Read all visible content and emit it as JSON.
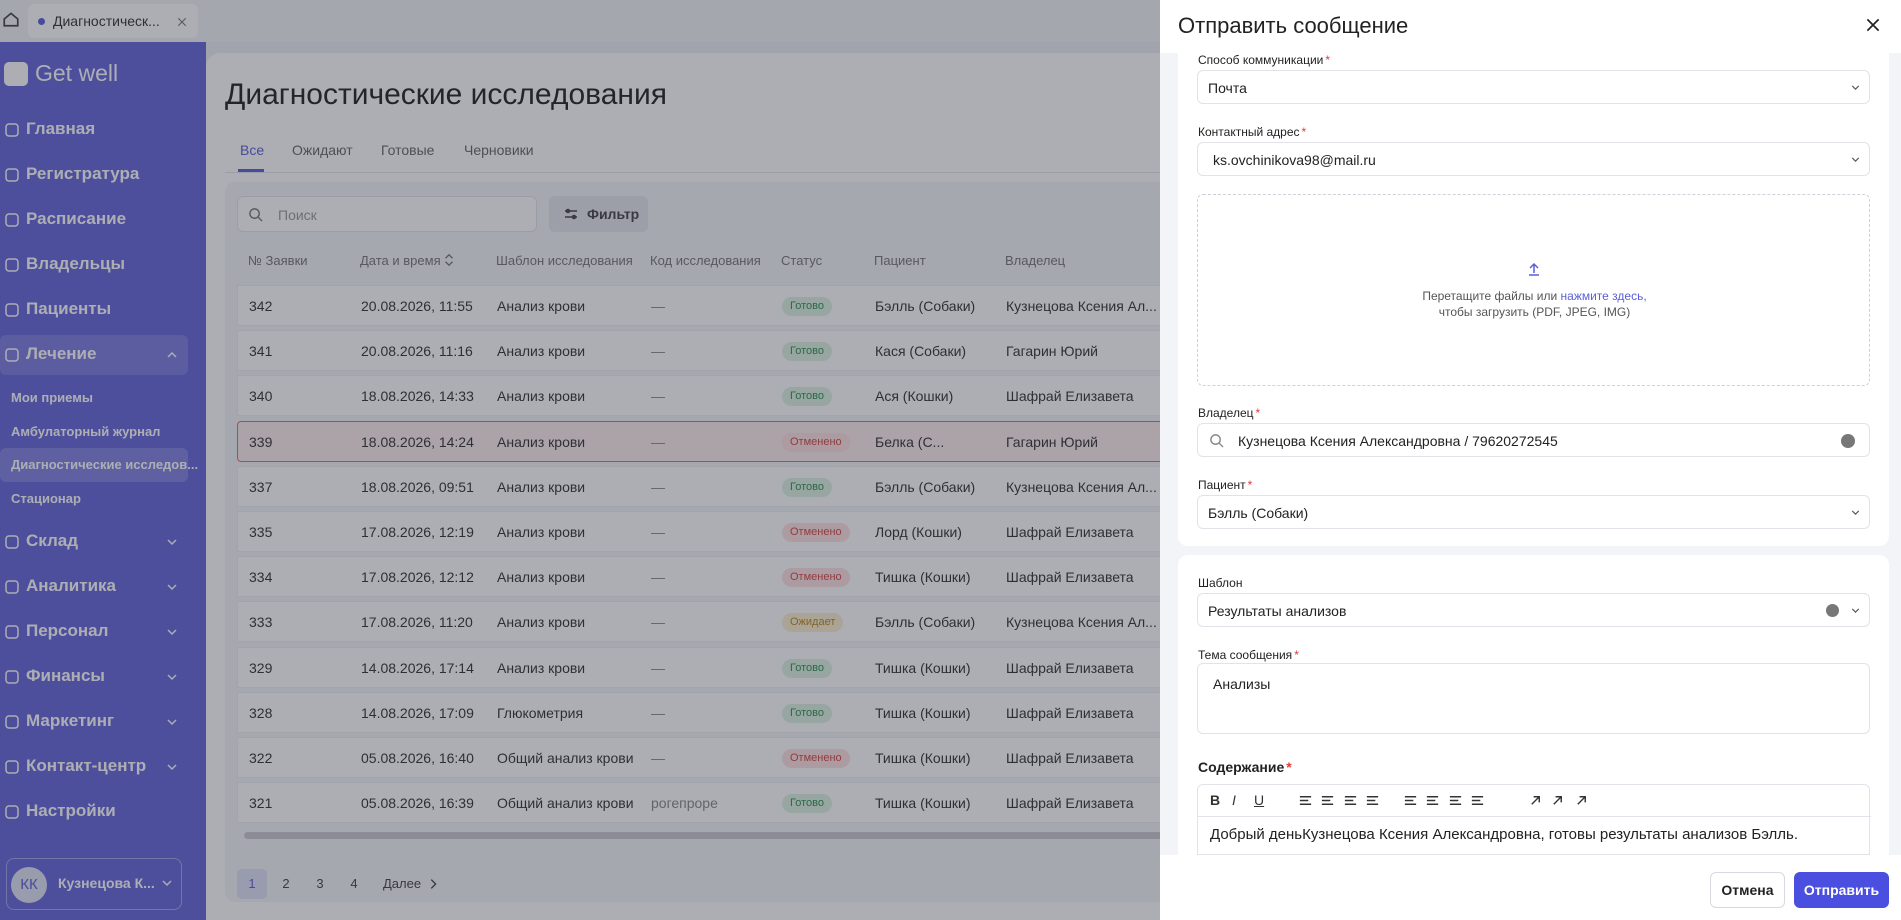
{
  "browser_tab": {
    "title": "Диагностическ..."
  },
  "sidebar": {
    "logo": "Get well",
    "nav": [
      {
        "label": "Главная"
      },
      {
        "label": "Регистратура"
      },
      {
        "label": "Расписание"
      },
      {
        "label": "Владельцы"
      },
      {
        "label": "Пациенты"
      },
      {
        "label": "Лечение",
        "expandable": true,
        "expanded": true,
        "children": [
          {
            "label": "Мои приемы"
          },
          {
            "label": "Амбулаторный журнал"
          },
          {
            "label": "Диагностические исследов...",
            "active": true
          },
          {
            "label": "Стационар"
          }
        ]
      },
      {
        "label": "Склад",
        "expandable": true
      },
      {
        "label": "Аналитика",
        "expandable": true
      },
      {
        "label": "Персонал",
        "expandable": true
      },
      {
        "label": "Финансы",
        "expandable": true
      },
      {
        "label": "Маркетинг",
        "expandable": true
      },
      {
        "label": "Контакт-центр",
        "expandable": true
      },
      {
        "label": "Настройки"
      }
    ],
    "user": {
      "initials": "КК",
      "name": "Кузнецова К..."
    }
  },
  "page": {
    "title": "Диагностические исследования",
    "tabs": [
      "Все",
      "Ожидают",
      "Готовые",
      "Черновики"
    ],
    "active_tab": 0,
    "search_placeholder": "Поиск",
    "filter": "Фильтр",
    "table": {
      "columns": [
        "№ Заявки",
        "Дата и время",
        "Шаблон исследования",
        "Код исследования",
        "Статус",
        "Пациент",
        "Владелец"
      ],
      "rows": [
        {
          "id": "342",
          "date": "20.08.2026, 11:55",
          "template": "Анализ крови",
          "code": "—",
          "status": {
            "label": "Готово",
            "color": "#2f8f55",
            "bg": "#dcf3e3"
          },
          "patient": "Бэлль (Собаки)",
          "owner": "Кузнецова Ксения Ал..."
        },
        {
          "id": "341",
          "date": "20.08.2026, 11:16",
          "template": "Анализ крови",
          "code": "—",
          "status": {
            "label": "Готово",
            "color": "#2f8f55",
            "bg": "#dcf3e3"
          },
          "patient": "Кася (Собаки)",
          "owner": "Гагарин Юрий"
        },
        {
          "id": "340",
          "date": "18.08.2026, 14:33",
          "template": "Анализ крови",
          "code": "—",
          "status": {
            "label": "Готово",
            "color": "#2f8f55",
            "bg": "#dcf3e3"
          },
          "patient": "Ася (Кошки)",
          "owner": "Шафрай Елизавета"
        },
        {
          "id": "339",
          "date": "18.08.2026, 14:24",
          "template": "Анализ крови",
          "code": "—",
          "status": {
            "label": "Отменено",
            "color": "#d34848",
            "bg": "#fde1e1"
          },
          "patient": "Белка (С...",
          "owner": "Гагарин Юрий",
          "selected": true
        },
        {
          "id": "337",
          "date": "18.08.2026, 09:51",
          "template": "Анализ крови",
          "code": "—",
          "status": {
            "label": "Готово",
            "color": "#2f8f55",
            "bg": "#dcf3e3"
          },
          "patient": "Бэлль (Собаки)",
          "owner": "Кузнецова Ксения Ал..."
        },
        {
          "id": "335",
          "date": "17.08.2026, 12:19",
          "template": "Анализ крови",
          "code": "—",
          "status": {
            "label": "Отменено",
            "color": "#d34848",
            "bg": "#fde1e1"
          },
          "patient": "Лорд (Кошки)",
          "owner": "Шафрай Елизавета"
        },
        {
          "id": "334",
          "date": "17.08.2026, 12:12",
          "template": "Анализ крови",
          "code": "—",
          "status": {
            "label": "Отменено",
            "color": "#d34848",
            "bg": "#fde1e1"
          },
          "patient": "Тишка (Кошки)",
          "owner": "Шафрай Елизавета"
        },
        {
          "id": "333",
          "date": "17.08.2026, 11:20",
          "template": "Анализ крови",
          "code": "—",
          "status": {
            "label": "Ожидает",
            "color": "#b9861b",
            "bg": "#fbefd2"
          },
          "patient": "Бэлль (Собаки)",
          "owner": "Кузнецова Ксения Ал..."
        },
        {
          "id": "329",
          "date": "14.08.2026, 17:14",
          "template": "Анализ крови",
          "code": "—",
          "status": {
            "label": "Готово",
            "color": "#2f8f55",
            "bg": "#dcf3e3"
          },
          "patient": "Тишка (Кошки)",
          "owner": "Шафрай Елизавета"
        },
        {
          "id": "328",
          "date": "14.08.2026, 17:09",
          "template": "Глюкометрия",
          "code": "—",
          "status": {
            "label": "Готово",
            "color": "#2f8f55",
            "bg": "#dcf3e3"
          },
          "patient": "Тишка (Кошки)",
          "owner": "Шафрай Елизавета"
        },
        {
          "id": "322",
          "date": "05.08.2026, 16:40",
          "template": "Общий анализ крови",
          "code": "—",
          "status": {
            "label": "Отменено",
            "color": "#d34848",
            "bg": "#fde1e1"
          },
          "patient": "Тишка (Кошки)",
          "owner": "Шафрай Елизавета"
        },
        {
          "id": "321",
          "date": "05.08.2026, 16:39",
          "template": "Общий анализ крови",
          "code": "рогепроре",
          "status": {
            "label": "Готово",
            "color": "#2f8f55",
            "bg": "#dcf3e3"
          },
          "patient": "Тишка (Кошки)",
          "owner": "Шафрай Елизавета"
        }
      ]
    },
    "pagination": {
      "pages": [
        "1",
        "2",
        "3",
        "4"
      ],
      "active": 0,
      "next": "Далее"
    }
  },
  "modal": {
    "title": "Отправить сообщение",
    "required_mark": "*",
    "fields": [
      {
        "label": "Способ коммуникации",
        "value": "Почта",
        "required": true
      },
      {
        "label": "Контактный адрес",
        "value": "ks.ovchinikova98@mail.ru",
        "required": true
      },
      {
        "label": "Владелец",
        "value": "Кузнецова Ксения Александровна / 79620272545",
        "required": true
      },
      {
        "label": "Пациент",
        "value": "Бэлль (Собаки)",
        "required": true
      },
      {
        "label": "Шаблон",
        "value": "Результаты анализов"
      },
      {
        "label": "Тема сообщения",
        "value": "Анализы",
        "required": true
      },
      {
        "label": "Содержание",
        "value": "Добрый деньКузнецова Ксения Александровна, готовы  результаты анализов Бэлль.",
        "required": true
      }
    ],
    "upload": {
      "text": "Перетащите файлы или",
      "link": "нажмите здесь,",
      "text2": "чтобы загрузить (PDF, JPEG, IMG)"
    },
    "toolbar": [
      "B",
      "I",
      "U"
    ],
    "cancel": "Отмена",
    "submit": "Отправить"
  }
}
